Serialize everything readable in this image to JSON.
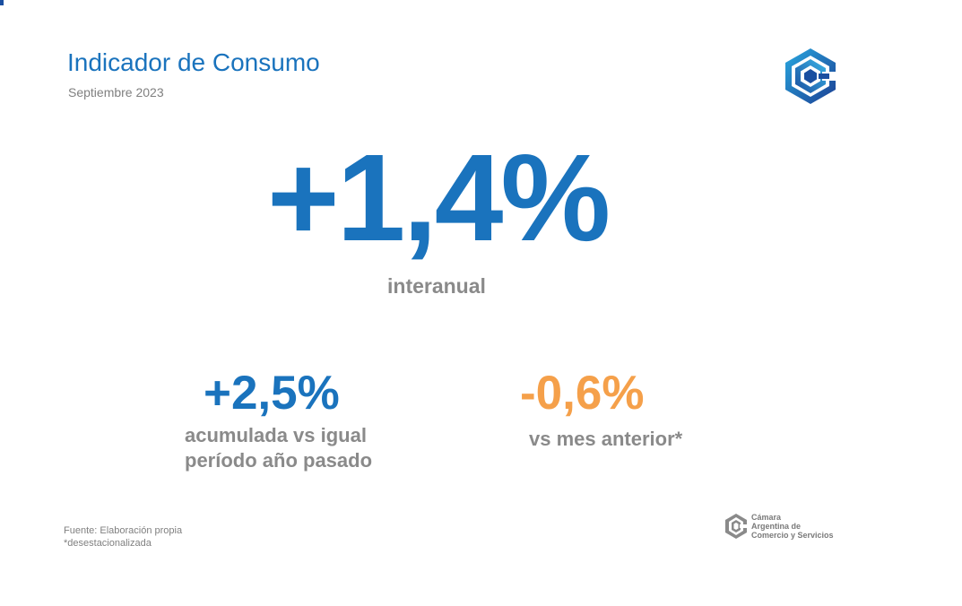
{
  "header": {
    "title": "Indicador de Consumo",
    "subtitle": "Septiembre 2023"
  },
  "hero": {
    "value": "+1,4%",
    "label": "interanual"
  },
  "stats": {
    "accumulated": {
      "value": "+2,5%",
      "label_line1": "acumulada vs igual",
      "label_line2": "período año pasado"
    },
    "monthly": {
      "value": "-0,6%",
      "label": "vs mes anterior*"
    }
  },
  "footnote": {
    "source": "Fuente: Elaboración propia",
    "note": "*desestacionalizada"
  },
  "footer_org": {
    "line1": "Cámara",
    "line2": "Argentina de",
    "line3": "Comercio y Servicios"
  },
  "colors": {
    "primary_blue": "#1a73bd",
    "accent_orange": "#f5a04a",
    "text_gray": "#8a8a8a"
  },
  "icons": {
    "header_logo": "cac-hexagon-logo-icon",
    "footer_logo": "cac-hexagon-logo-small-icon"
  }
}
